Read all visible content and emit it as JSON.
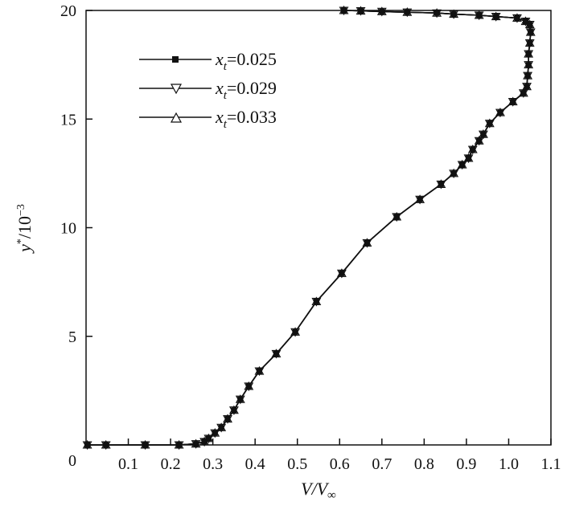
{
  "chart_data": {
    "type": "line",
    "title": "",
    "xlabel": {
      "base": "V/V",
      "sub": "∞"
    },
    "ylabel": {
      "base": "y",
      "sup1": "*",
      "mid": "/10",
      "sup2": "−3"
    },
    "xlim": [
      0.0,
      1.1
    ],
    "ylim": [
      0,
      20
    ],
    "x_ticks": [
      0.1,
      0.2,
      0.3,
      0.4,
      0.5,
      0.6,
      0.7,
      0.8,
      0.9,
      1.0,
      1.1
    ],
    "x_tick_labels": [
      "0.1",
      "0.2",
      "0.3",
      "0.4",
      "0.5",
      "0.6",
      "0.7",
      "0.8",
      "0.9",
      "1.0",
      "1.1"
    ],
    "y_ticks": [
      0,
      5,
      10,
      15,
      20
    ],
    "y_tick_labels": [
      "0",
      "5",
      "10",
      "15",
      "20"
    ],
    "grid": false,
    "legend_position": "top-left",
    "series": [
      {
        "name": "0.025",
        "label_var": "x",
        "label_sub": "t",
        "label_value": "=0.025",
        "marker": "square",
        "x": [
          0.003,
          0.047,
          0.14,
          0.22,
          0.26,
          0.28,
          0.29,
          0.305,
          0.32,
          0.335,
          0.35,
          0.365,
          0.385,
          0.41,
          0.45,
          0.495,
          0.545,
          0.605,
          0.665,
          0.735,
          0.79,
          0.84,
          0.87,
          0.89,
          0.905,
          0.915,
          0.93,
          0.94,
          0.955,
          0.98,
          1.01,
          1.035,
          1.043,
          1.045,
          1.047,
          1.047,
          1.05,
          1.052,
          1.05,
          1.04,
          1.02,
          0.97,
          0.93,
          0.87,
          0.83,
          0.76,
          0.7,
          0.65,
          0.61
        ],
        "y": [
          0.0,
          0.0,
          0.0,
          0.0,
          0.05,
          0.15,
          0.3,
          0.55,
          0.8,
          1.2,
          1.6,
          2.1,
          2.7,
          3.4,
          4.2,
          5.2,
          6.6,
          7.9,
          9.3,
          10.5,
          11.3,
          12.0,
          12.5,
          12.9,
          13.2,
          13.6,
          14.0,
          14.3,
          14.8,
          15.3,
          15.8,
          16.2,
          16.5,
          17.0,
          17.5,
          18.0,
          18.5,
          19.0,
          19.35,
          19.5,
          19.65,
          19.72,
          19.78,
          19.83,
          19.88,
          19.92,
          19.95,
          19.98,
          20.0
        ]
      },
      {
        "name": "0.029",
        "label_var": "x",
        "label_sub": "t",
        "label_value": "=0.029",
        "marker": "triangle-down",
        "x": [
          0.003,
          0.047,
          0.14,
          0.22,
          0.26,
          0.28,
          0.29,
          0.305,
          0.32,
          0.335,
          0.35,
          0.365,
          0.385,
          0.41,
          0.45,
          0.495,
          0.545,
          0.605,
          0.665,
          0.735,
          0.79,
          0.84,
          0.87,
          0.89,
          0.905,
          0.915,
          0.93,
          0.94,
          0.955,
          0.98,
          1.01,
          1.035,
          1.043,
          1.045,
          1.047,
          1.047,
          1.05,
          1.052,
          1.05,
          1.04,
          1.02,
          0.97,
          0.93,
          0.87,
          0.83,
          0.76,
          0.7,
          0.65,
          0.61
        ],
        "y": [
          0.0,
          0.0,
          0.0,
          0.0,
          0.05,
          0.15,
          0.3,
          0.55,
          0.8,
          1.2,
          1.6,
          2.1,
          2.7,
          3.4,
          4.2,
          5.2,
          6.6,
          7.9,
          9.3,
          10.5,
          11.3,
          12.0,
          12.5,
          12.9,
          13.2,
          13.6,
          14.0,
          14.3,
          14.8,
          15.3,
          15.8,
          16.2,
          16.5,
          17.0,
          17.5,
          18.0,
          18.5,
          19.0,
          19.35,
          19.5,
          19.65,
          19.72,
          19.78,
          19.83,
          19.88,
          19.92,
          19.95,
          19.98,
          20.0
        ]
      },
      {
        "name": "0.033",
        "label_var": "x",
        "label_sub": "t",
        "label_value": "=0.033",
        "marker": "triangle-up",
        "x": [
          0.003,
          0.047,
          0.14,
          0.22,
          0.26,
          0.28,
          0.29,
          0.305,
          0.32,
          0.335,
          0.35,
          0.365,
          0.385,
          0.41,
          0.45,
          0.495,
          0.545,
          0.605,
          0.665,
          0.735,
          0.79,
          0.84,
          0.87,
          0.89,
          0.905,
          0.915,
          0.93,
          0.94,
          0.955,
          0.98,
          1.01,
          1.035,
          1.043,
          1.045,
          1.047,
          1.047,
          1.05,
          1.052,
          1.05,
          1.04,
          1.02,
          0.97,
          0.93,
          0.87,
          0.83,
          0.76,
          0.7,
          0.65,
          0.61
        ],
        "y": [
          0.0,
          0.0,
          0.0,
          0.0,
          0.05,
          0.15,
          0.3,
          0.55,
          0.8,
          1.2,
          1.6,
          2.1,
          2.7,
          3.4,
          4.2,
          5.2,
          6.6,
          7.9,
          9.3,
          10.5,
          11.3,
          12.0,
          12.5,
          12.9,
          13.2,
          13.6,
          14.0,
          14.3,
          14.8,
          15.3,
          15.8,
          16.2,
          16.5,
          17.0,
          17.5,
          18.0,
          18.5,
          19.0,
          19.35,
          19.5,
          19.65,
          19.72,
          19.78,
          19.83,
          19.88,
          19.92,
          19.95,
          19.98,
          20.0
        ]
      }
    ],
    "line_color": "#111111"
  }
}
